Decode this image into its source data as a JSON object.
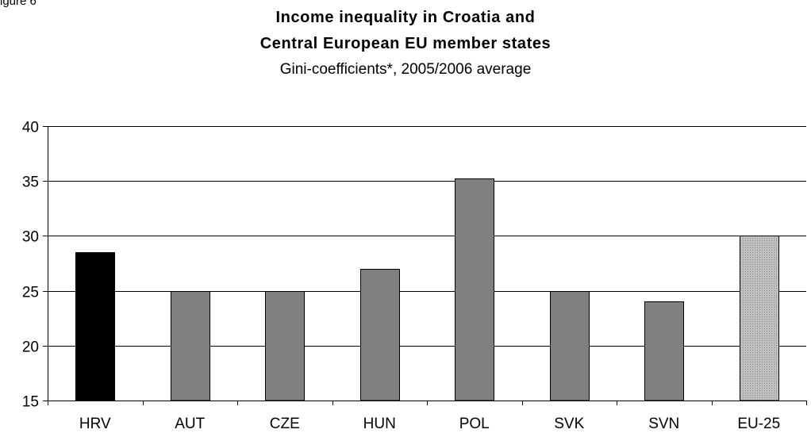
{
  "figure_label": "igure 6",
  "chart_data": {
    "type": "bar",
    "title_lines": [
      "Income inequality in Croatia and",
      "Central European EU member states"
    ],
    "subtitle": "Gini-coefficients*, 2005/2006 average",
    "categories": [
      "HRV",
      "AUT",
      "CZE",
      "HUN",
      "POL",
      "SVK",
      "SVN",
      "EU-25"
    ],
    "values": [
      28.5,
      25,
      25,
      27,
      35.2,
      25,
      24,
      30
    ],
    "bar_styles": [
      "solid-black",
      "solid-gray",
      "solid-gray",
      "solid-gray",
      "solid-gray",
      "solid-gray",
      "solid-gray",
      "dotted-gray"
    ],
    "ylim": [
      15,
      40
    ],
    "yticks": [
      15,
      20,
      25,
      30,
      35,
      40
    ],
    "xlabel": "",
    "ylabel": "",
    "grid": true,
    "legend": "none",
    "colors": {
      "highlight": "#000000",
      "bar": "#808080",
      "aggregate_fill": "#c0c0c0",
      "aggregate_dot": "#808080",
      "grid": "#000000"
    }
  }
}
